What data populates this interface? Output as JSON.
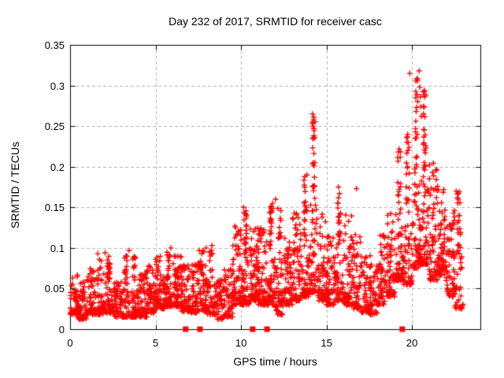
{
  "chart_data": {
    "type": "scatter",
    "title": "Day 232 of 2017, SRMTID for receiver casc",
    "xlabel": "GPS time / hours",
    "ylabel": "SRMTID / TECUs",
    "xlim": [
      0,
      24
    ],
    "ylim": [
      0,
      0.35
    ],
    "xticks": [
      0,
      5,
      10,
      15,
      20
    ],
    "xtick_labels": [
      "0",
      "5",
      "10",
      "15",
      "20"
    ],
    "yticks": [
      0,
      0.05,
      0.1,
      0.15,
      0.2,
      0.25,
      0.3,
      0.35
    ],
    "ytick_labels": [
      "0",
      "0.05",
      "0.1",
      "0.15",
      "0.2",
      "0.25",
      "0.3",
      "0.35"
    ],
    "grid": true,
    "grid_style": "dashed",
    "grid_color": "#b3b3b3",
    "marker": "plus",
    "marker_color": "#ff0000",
    "border_color": "#000000",
    "data_extent_hours": [
      0.0,
      23.0
    ],
    "scatter_envelope": {
      "description": "dense scatter of red + markers; per 0.5h bin: [t_start, n_points, y_min, y_max, skew_toward_min, spike_column_flag]",
      "bin_hours": 0.5,
      "bins": [
        [
          0.0,
          55,
          0.018,
          0.07,
          1.9,
          0
        ],
        [
          0.5,
          50,
          0.012,
          0.06,
          1.8,
          0
        ],
        [
          1.0,
          55,
          0.018,
          0.078,
          1.9,
          0
        ],
        [
          1.5,
          55,
          0.018,
          0.088,
          2.1,
          0
        ],
        [
          2.0,
          60,
          0.02,
          0.095,
          2.1,
          1
        ],
        [
          2.5,
          50,
          0.015,
          0.058,
          1.7,
          0
        ],
        [
          3.0,
          55,
          0.015,
          0.098,
          2.3,
          1
        ],
        [
          3.5,
          55,
          0.015,
          0.09,
          2.3,
          1
        ],
        [
          4.0,
          55,
          0.015,
          0.072,
          1.8,
          0
        ],
        [
          4.5,
          55,
          0.02,
          0.078,
          1.9,
          0
        ],
        [
          5.0,
          60,
          0.025,
          0.09,
          1.9,
          0
        ],
        [
          5.5,
          60,
          0.028,
          0.1,
          2.0,
          1
        ],
        [
          6.0,
          60,
          0.028,
          0.09,
          1.8,
          0
        ],
        [
          6.5,
          55,
          0.022,
          0.08,
          1.8,
          0
        ],
        [
          7.0,
          55,
          0.02,
          0.082,
          1.8,
          0
        ],
        [
          7.5,
          60,
          0.022,
          0.098,
          1.9,
          0
        ],
        [
          8.0,
          55,
          0.018,
          0.1,
          2.2,
          1
        ],
        [
          8.5,
          48,
          0.012,
          0.062,
          1.7,
          0
        ],
        [
          9.0,
          52,
          0.015,
          0.075,
          1.9,
          0
        ],
        [
          9.5,
          65,
          0.03,
          0.13,
          2.1,
          0
        ],
        [
          10.0,
          70,
          0.03,
          0.15,
          2.2,
          1
        ],
        [
          10.5,
          68,
          0.035,
          0.125,
          1.9,
          0
        ],
        [
          11.0,
          68,
          0.03,
          0.13,
          1.9,
          0
        ],
        [
          11.5,
          75,
          0.03,
          0.155,
          2.0,
          1
        ],
        [
          12.0,
          62,
          0.018,
          0.15,
          2.4,
          1
        ],
        [
          12.5,
          58,
          0.03,
          0.112,
          1.9,
          0
        ],
        [
          13.0,
          62,
          0.035,
          0.148,
          2.1,
          0
        ],
        [
          13.5,
          68,
          0.04,
          0.188,
          2.2,
          1
        ],
        [
          14.0,
          80,
          0.045,
          0.262,
          2.2,
          1
        ],
        [
          14.5,
          62,
          0.035,
          0.152,
          2.2,
          0
        ],
        [
          15.0,
          58,
          0.03,
          0.122,
          1.9,
          0
        ],
        [
          15.5,
          62,
          0.035,
          0.172,
          2.2,
          1
        ],
        [
          16.0,
          58,
          0.03,
          0.142,
          2.1,
          0
        ],
        [
          16.5,
          54,
          0.025,
          0.118,
          2.0,
          0
        ],
        [
          17.0,
          52,
          0.02,
          0.09,
          1.7,
          0
        ],
        [
          17.5,
          52,
          0.018,
          0.092,
          1.8,
          0
        ],
        [
          18.0,
          58,
          0.03,
          0.118,
          1.9,
          0
        ],
        [
          18.5,
          58,
          0.04,
          0.148,
          2.0,
          0
        ],
        [
          19.0,
          72,
          0.06,
          0.225,
          2.2,
          1
        ],
        [
          19.5,
          66,
          0.055,
          0.245,
          2.4,
          1
        ],
        [
          20.0,
          82,
          0.075,
          0.315,
          2.2,
          1
        ],
        [
          20.5,
          82,
          0.08,
          0.295,
          2.1,
          1
        ],
        [
          21.0,
          66,
          0.06,
          0.205,
          2.0,
          0
        ],
        [
          21.5,
          66,
          0.065,
          0.172,
          1.8,
          0
        ],
        [
          22.0,
          58,
          0.04,
          0.148,
          1.9,
          0
        ],
        [
          22.5,
          52,
          0.025,
          0.172,
          2.3,
          1
        ]
      ]
    },
    "outliers": [
      [
        1.62,
        0.093
      ],
      [
        2.05,
        0.094
      ],
      [
        3.45,
        0.097
      ],
      [
        4.62,
        0.078
      ],
      [
        5.9,
        0.1
      ],
      [
        6.3,
        0.09
      ],
      [
        7.95,
        0.1
      ],
      [
        8.3,
        0.103
      ],
      [
        10.15,
        0.15
      ],
      [
        11.85,
        0.155
      ],
      [
        12.02,
        0.16
      ],
      [
        13.85,
        0.19
      ],
      [
        14.18,
        0.265
      ],
      [
        14.21,
        0.25
      ],
      [
        14.25,
        0.247
      ],
      [
        15.7,
        0.175
      ],
      [
        16.75,
        0.173
      ],
      [
        19.24,
        0.172
      ],
      [
        19.78,
        0.23
      ],
      [
        19.87,
        0.315
      ],
      [
        20.42,
        0.318
      ],
      [
        20.46,
        0.298
      ],
      [
        20.49,
        0.286
      ],
      [
        20.52,
        0.274
      ],
      [
        20.56,
        0.262
      ],
      [
        21.47,
        0.171
      ],
      [
        22.58,
        0.17
      ],
      [
        22.7,
        0.16
      ]
    ],
    "baseline_flags": {
      "marker": "filled-square",
      "color": "#ff0000",
      "y": 0,
      "hours": [
        6.76,
        7.6,
        10.68,
        11.52,
        19.43
      ]
    },
    "render_seed": 232
  }
}
